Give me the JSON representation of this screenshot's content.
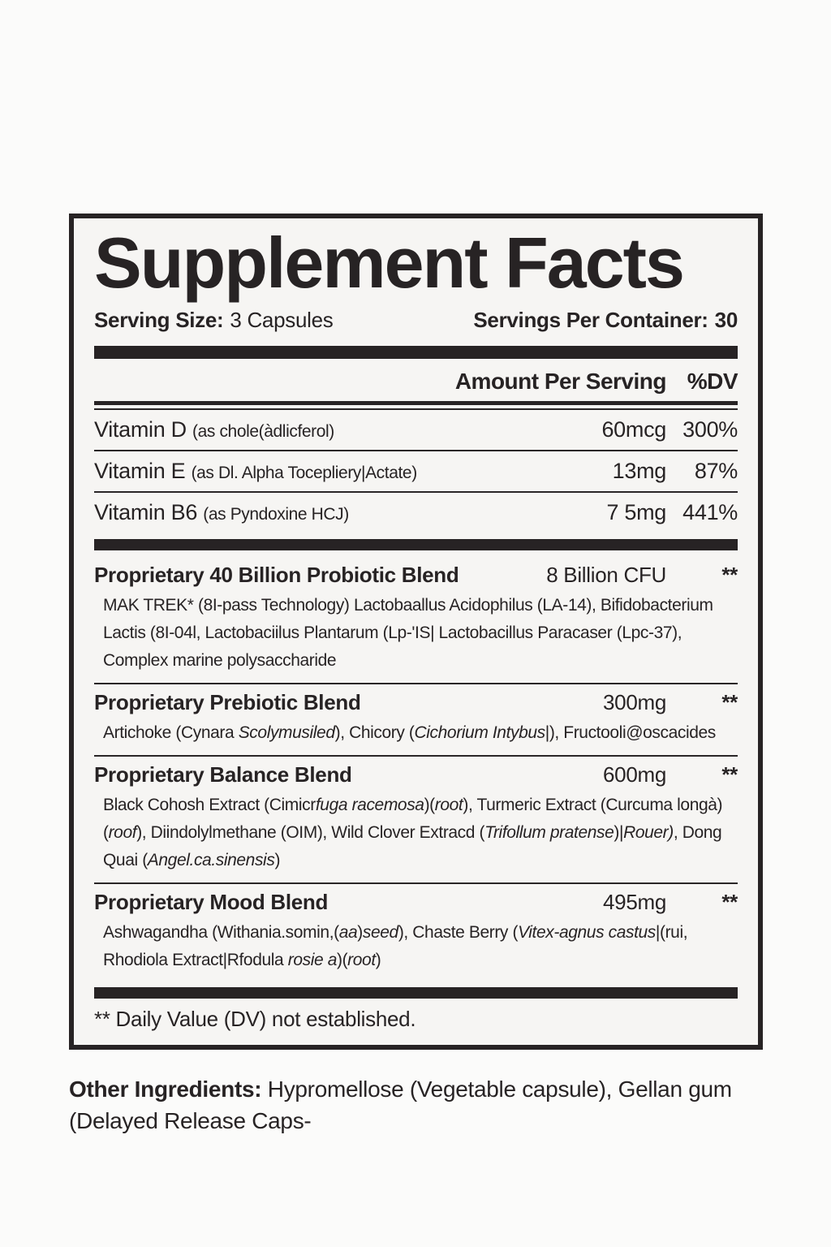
{
  "label": {
    "title": "Supplement Facts",
    "serving_size": {
      "label": "Serving Size:",
      "value": "3 Capsules"
    },
    "servings_per_container": {
      "label": "Servings Per Container:",
      "value": "30"
    },
    "columns": {
      "amount": "Amount Per Serving",
      "dv": "%DV"
    },
    "vitamins": [
      {
        "name": "Vitamin D",
        "detail": "(as chole(àdlicferol)",
        "amount": "60mcg",
        "dv": "300%"
      },
      {
        "name": "Vitamin E",
        "detail": "(as Dl. Alpha Tocepliery|Actate)",
        "amount": "13mg",
        "dv": "87%"
      },
      {
        "name": "Vitamin B6",
        "detail": "(as Pyndoxine HCJ)",
        "amount": "7 5mg",
        "dv": "441%"
      }
    ],
    "blends": [
      {
        "name": "Proprietary 40 Billion Probiotic Blend",
        "amount": "8 Billion CFU",
        "dv": "**",
        "description": [
          {
            "t": "MAK TREK* (8I-pass Technology) Lactobaallus Acidophilus (LA-14), Bifidobacterium Lactis (8I-04l, Lactobaciilus Plantarum (Lp-'IS| Lactobacillus Paracaser (Lpc-37), Complex marine polysaccharide"
          }
        ]
      },
      {
        "name": "Proprietary Prebiotic Blend",
        "amount": "300mg",
        "dv": "**",
        "description": [
          {
            "t": "Artichoke (Cynara "
          },
          {
            "t": "Scolymusiled",
            "i": true
          },
          {
            "t": "), Chicory ("
          },
          {
            "t": "Cichorium Intybus",
            "i": true
          },
          {
            "t": "|), Fructooli@oscacides"
          }
        ]
      },
      {
        "name": "Proprietary Balance Blend",
        "amount": "600mg",
        "dv": "**",
        "description": [
          {
            "t": "Black Cohosh Extract (Cimicr"
          },
          {
            "t": "fuga racemosa",
            "i": true
          },
          {
            "t": ")("
          },
          {
            "t": "root",
            "i": true
          },
          {
            "t": "), Turmeric Extract (Curcuma longà)("
          },
          {
            "t": "roof",
            "i": true
          },
          {
            "t": "), Diindolylmethane (OIM), Wild Clover Extracd ("
          },
          {
            "t": "Trifollum pratense",
            "i": true
          },
          {
            "t": ")|"
          },
          {
            "t": "Rouer)",
            "i": true
          },
          {
            "t": ", Dong Quai ("
          },
          {
            "t": "Angel.ca.sinensis",
            "i": true
          },
          {
            "t": ")"
          }
        ]
      },
      {
        "name": "Proprietary Mood Blend",
        "amount": "495mg",
        "dv": "**",
        "description": [
          {
            "t": "Ashwagandha (Withania.somin,("
          },
          {
            "t": "aa",
            "i": true
          },
          {
            "t": ")"
          },
          {
            "t": "seed",
            "i": true
          },
          {
            "t": "), Chaste Berry ("
          },
          {
            "t": "Vitex-agnus castus",
            "i": true
          },
          {
            "t": "|(rui, Rhodiola Extract|Rfodula "
          },
          {
            "t": "rosie a",
            "i": true
          },
          {
            "t": ")("
          },
          {
            "t": "root",
            "i": true
          },
          {
            "t": ")"
          }
        ]
      }
    ],
    "footnote": "** Daily Value (DV) not established.",
    "other_ingredients": {
      "label": "Other Ingredients:",
      "text": " Hypromellose (Vegetable capsule), Gellan gum (Delayed Release Caps-"
    }
  },
  "colors": {
    "ink": "#272324",
    "label_background": "#f6f5f3",
    "page_background": "#fbfbfa"
  }
}
